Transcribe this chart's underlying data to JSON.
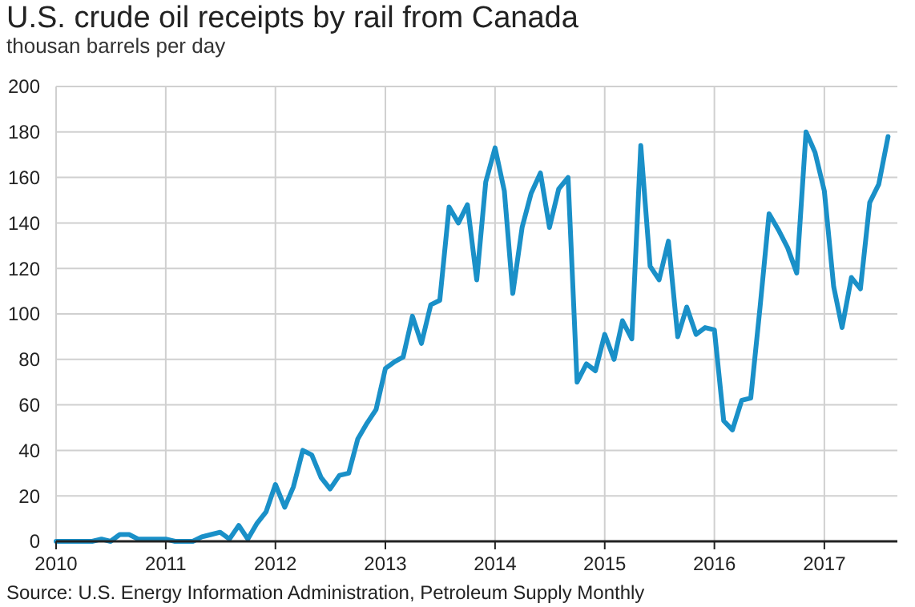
{
  "chart_data": {
    "type": "line",
    "title": "U.S. crude oil receipts by rail from Canada",
    "subtitle": "thousan barrels per day",
    "x": [
      "2010-01",
      "2010-02",
      "2010-03",
      "2010-04",
      "2010-05",
      "2010-06",
      "2010-07",
      "2010-08",
      "2010-09",
      "2010-10",
      "2010-11",
      "2010-12",
      "2011-01",
      "2011-02",
      "2011-03",
      "2011-04",
      "2011-05",
      "2011-06",
      "2011-07",
      "2011-08",
      "2011-09",
      "2011-10",
      "2011-11",
      "2011-12",
      "2012-01",
      "2012-02",
      "2012-03",
      "2012-04",
      "2012-05",
      "2012-06",
      "2012-07",
      "2012-08",
      "2012-09",
      "2012-10",
      "2012-11",
      "2012-12",
      "2013-01",
      "2013-02",
      "2013-03",
      "2013-04",
      "2013-05",
      "2013-06",
      "2013-07",
      "2013-08",
      "2013-09",
      "2013-10",
      "2013-11",
      "2013-12",
      "2014-01",
      "2014-02",
      "2014-03",
      "2014-04",
      "2014-05",
      "2014-06",
      "2014-07",
      "2014-08",
      "2014-09",
      "2014-10",
      "2014-11",
      "2014-12",
      "2015-01",
      "2015-02",
      "2015-03",
      "2015-04",
      "2015-05",
      "2015-06",
      "2015-07",
      "2015-08",
      "2015-09",
      "2015-10",
      "2015-11",
      "2015-12",
      "2016-01",
      "2016-02",
      "2016-03",
      "2016-04",
      "2016-05",
      "2016-06",
      "2016-07",
      "2016-08",
      "2016-09",
      "2016-10",
      "2016-11",
      "2016-12",
      "2017-01",
      "2017-02",
      "2017-03",
      "2017-04",
      "2017-05",
      "2017-06",
      "2017-07",
      "2017-08"
    ],
    "series": [
      {
        "color": "#1a90c8",
        "values": [
          0,
          0,
          0,
          0,
          0,
          1,
          0,
          3,
          3,
          1,
          1,
          1,
          1,
          0,
          0,
          0,
          2,
          3,
          4,
          1,
          7,
          1,
          8,
          13,
          25,
          15,
          24,
          40,
          38,
          28,
          23,
          29,
          30,
          45,
          52,
          58,
          76,
          79,
          81,
          99,
          87,
          104,
          106,
          147,
          140,
          148,
          115,
          158,
          173,
          154,
          109,
          138,
          153,
          162,
          138,
          155,
          160,
          70,
          78,
          75,
          91,
          80,
          97,
          89,
          174,
          121,
          115,
          132,
          90,
          103,
          91,
          94,
          93,
          53,
          49,
          62,
          63,
          103,
          144,
          137,
          129,
          118,
          180,
          171,
          154,
          112,
          94,
          116,
          111,
          149,
          157,
          178
        ]
      }
    ],
    "xlim": [
      "2010-01",
      "2017-09"
    ],
    "xticks": [
      "2010",
      "2011",
      "2012",
      "2013",
      "2014",
      "2015",
      "2016",
      "2017"
    ],
    "ylim": [
      0,
      200
    ],
    "yticks": [
      0,
      20,
      40,
      60,
      80,
      100,
      120,
      140,
      160,
      180,
      200
    ],
    "grid": true,
    "line_style": "solid",
    "marker": "none",
    "annotations": [
      "Source: U.S. Energy Information Administration, Petroleum Supply Monthly"
    ]
  }
}
